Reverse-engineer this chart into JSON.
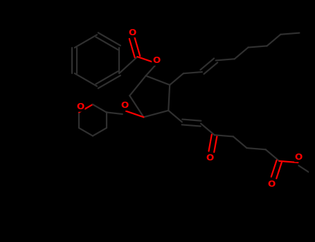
{
  "bg": "#000000",
  "bond_color": "#1a1a1a",
  "oxygen_color": "#ff0000",
  "figsize": [
    4.55,
    3.5
  ],
  "dpi": 100,
  "xlim": [
    -0.5,
    9.5
  ],
  "ylim": [
    -0.5,
    7.5
  ],
  "bond_lw": 1.6,
  "font_size": 9.5
}
